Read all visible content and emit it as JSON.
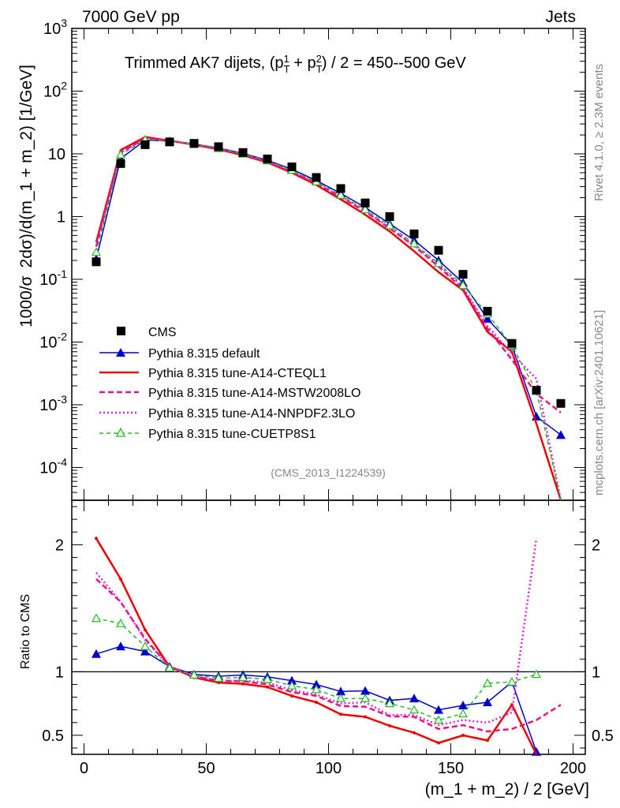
{
  "header": {
    "left": "7000 GeV pp",
    "right": "Jets",
    "side_top": "Rivet 4.1.0, ≥ 2.3M events",
    "side_bottom": "mcplots.cern.ch [arXiv:2401.10621]",
    "analysis": "(CMS_2013_I1224539)"
  },
  "colors": {
    "cms": "#000000",
    "default": "#0000cc",
    "cteql1": "#ee0000",
    "mstw": "#ee1177",
    "nnpdf": "#dd22dd",
    "cuetp8s1": "#22bb22"
  },
  "chart_data": [
    {
      "type": "line",
      "title_main": "Trimmed AK7 dijets, (p",
      "title_t1": "T",
      "title_s1": "1",
      "title_plus": " + p",
      "title_t2": "T",
      "title_s2": "2",
      "title_tail": ") / 2 = 450--500 GeV",
      "ylabel_pre": "1000/σ",
      "ylabel_main": "2dσ)/d(m_1 + m_2) [1/GeV]",
      "yscale": "log",
      "ylim": [
        3e-05,
        1000
      ],
      "xlim": [
        -5,
        205
      ],
      "yticks": [
        {
          "base": "10",
          "exp": "3"
        },
        {
          "base": "10",
          "exp": "2"
        },
        {
          "base": "10",
          "exp": ""
        },
        {
          "base": "1",
          "exp": ""
        },
        {
          "base": "10",
          "exp": "-1"
        },
        {
          "base": "10",
          "exp": "-2"
        },
        {
          "base": "10",
          "exp": "-3"
        },
        {
          "base": "10",
          "exp": "-4"
        }
      ],
      "x": [
        5,
        15,
        25,
        35,
        45,
        55,
        65,
        75,
        85,
        95,
        105,
        115,
        125,
        135,
        145,
        155,
        165,
        175,
        185,
        195
      ],
      "cms": [
        0.19,
        7.0,
        14.0,
        15.5,
        14.7,
        13.0,
        10.5,
        8.3,
        6.2,
        4.2,
        2.8,
        1.65,
        1.0,
        0.53,
        0.29,
        0.12,
        0.031,
        0.0095,
        0.0017,
        0.00105
      ],
      "series": [
        {
          "name": "Pythia 8.315 default",
          "key": "default",
          "values": [
            0.21,
            8.4,
            16.5,
            16.0,
            14.4,
            12.4,
            10.2,
            7.9,
            5.7,
            3.75,
            2.35,
            1.4,
            0.77,
            0.42,
            0.2,
            0.088,
            0.0235,
            0.0088,
            0.00065,
            0.00033
          ]
        },
        {
          "name": "Pythia 8.315 tune-A14-CTEQL1",
          "key": "cteql1",
          "values": [
            0.39,
            11.5,
            18.5,
            16.2,
            14.0,
            11.8,
            9.5,
            7.3,
            5.0,
            3.2,
            1.88,
            1.07,
            0.58,
            0.28,
            0.13,
            0.067,
            0.0145,
            0.007,
            0.0005,
            null
          ]
        },
        {
          "name": "Pythia 8.315 tune-A14-MSTW2008LO",
          "key": "mstw",
          "values": [
            0.33,
            10.5,
            17.5,
            16.1,
            14.2,
            12.0,
            9.7,
            7.5,
            5.2,
            3.4,
            2.05,
            1.2,
            0.65,
            0.34,
            0.16,
            0.07,
            0.0165,
            0.0052,
            0.0015,
            0.00075
          ]
        },
        {
          "name": "Pythia 8.315 tune-A14-NNPDF2.3LO",
          "key": "nnpdf",
          "values": [
            0.34,
            10.6,
            17.4,
            16.1,
            14.2,
            12.0,
            9.8,
            7.6,
            5.3,
            3.45,
            2.1,
            1.25,
            0.66,
            0.35,
            0.17,
            0.075,
            0.018,
            0.0065,
            0.0026,
            null
          ]
        },
        {
          "name": "Pythia 8.315 tune-CUETP8S1",
          "key": "cuetp8s1",
          "values": [
            0.27,
            9.7,
            16.8,
            15.9,
            14.3,
            12.2,
            10.0,
            7.8,
            5.5,
            3.6,
            2.2,
            1.3,
            0.72,
            0.37,
            0.18,
            0.08,
            0.028,
            0.0088,
            0.00165,
            null
          ]
        }
      ],
      "legend_cms": "CMS",
      "legend": "left"
    },
    {
      "type": "line",
      "ylabel": "Ratio to CMS",
      "xlabel": "(m_1 + m_2) / 2 [GeV]",
      "ylim": [
        0.35,
        2.35
      ],
      "xlim": [
        -5,
        205
      ],
      "yticks": [
        "0.5",
        "1",
        "2"
      ],
      "xticks": [
        "0",
        "50",
        "100",
        "150",
        "200"
      ],
      "x": [
        5,
        15,
        25,
        35,
        45,
        55,
        65,
        75,
        85,
        95,
        105,
        115,
        125,
        135,
        145,
        155,
        165,
        175,
        185,
        195
      ],
      "series": [
        {
          "key": "default",
          "values": [
            1.14,
            1.2,
            1.16,
            1.04,
            0.98,
            0.965,
            0.975,
            0.96,
            0.93,
            0.9,
            0.845,
            0.85,
            0.775,
            0.79,
            0.7,
            0.735,
            0.76,
            0.92,
            0.37,
            null
          ]
        },
        {
          "key": "cteql1",
          "values": [
            2.05,
            1.73,
            1.33,
            1.04,
            0.955,
            0.915,
            0.905,
            0.88,
            0.81,
            0.76,
            0.665,
            0.645,
            0.575,
            0.52,
            0.44,
            0.5,
            0.46,
            0.74,
            0.3,
            null
          ]
        },
        {
          "key": "mstw",
          "values": [
            1.73,
            1.55,
            1.26,
            1.04,
            0.965,
            0.93,
            0.925,
            0.9,
            0.84,
            0.81,
            0.73,
            0.725,
            0.65,
            0.645,
            0.55,
            0.58,
            0.53,
            0.55,
            0.62,
            0.74
          ]
        },
        {
          "key": "nnpdf",
          "values": [
            1.78,
            1.55,
            1.25,
            1.04,
            0.965,
            0.93,
            0.93,
            0.915,
            0.855,
            0.82,
            0.75,
            0.76,
            0.66,
            0.66,
            0.58,
            0.62,
            0.6,
            0.68,
            2.05,
            null
          ]
        },
        {
          "key": "cuetp8s1",
          "values": [
            1.42,
            1.38,
            1.2,
            1.03,
            0.975,
            0.95,
            0.955,
            0.94,
            0.89,
            0.86,
            0.79,
            0.79,
            0.75,
            0.7,
            0.62,
            0.67,
            0.91,
            0.92,
            0.98,
            null
          ]
        }
      ]
    }
  ]
}
